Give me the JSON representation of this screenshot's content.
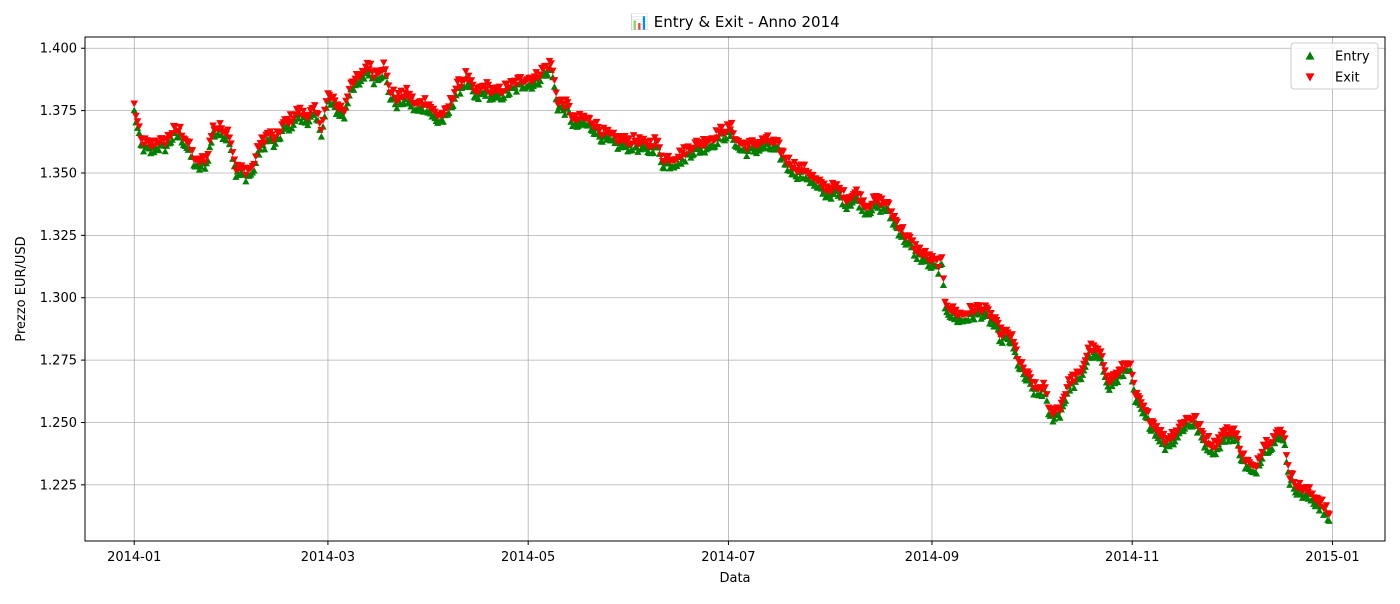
{
  "chart_data": {
    "type": "scatter",
    "title": "📊 Entry & Exit - Anno 2014",
    "xlabel": "Data",
    "ylabel": "Prezzo EUR/USD",
    "x_type": "date",
    "xlim": [
      "2013-12-17",
      "2015-01-17"
    ],
    "ylim": [
      1.2025,
      1.4045
    ],
    "x_ticks": [
      "2014-01",
      "2014-03",
      "2014-05",
      "2014-07",
      "2014-09",
      "2014-11",
      "2015-01"
    ],
    "x_tick_dates": [
      "2014-01-01",
      "2014-03-01",
      "2014-05-01",
      "2014-07-01",
      "2014-09-01",
      "2014-11-01",
      "2015-01-01"
    ],
    "y_ticks": [
      1.225,
      1.25,
      1.275,
      1.3,
      1.325,
      1.35,
      1.375,
      1.4
    ],
    "y_tick_labels": [
      "1.225",
      "1.250",
      "1.275",
      "1.300",
      "1.325",
      "1.350",
      "1.375",
      "1.400"
    ],
    "grid": true,
    "legend_position": "top-right",
    "series": [
      {
        "name": "Entry",
        "marker": "triangle-up",
        "color": "#008000"
      },
      {
        "name": "Exit",
        "marker": "triangle-down",
        "color": "#ff0000"
      }
    ],
    "price_path": [
      [
        "2014-01-01",
        1.376
      ],
      [
        "2014-01-03",
        1.362
      ],
      [
        "2014-01-06",
        1.36
      ],
      [
        "2014-01-08",
        1.362
      ],
      [
        "2014-01-10",
        1.361
      ],
      [
        "2014-01-13",
        1.366
      ],
      [
        "2014-01-15",
        1.366
      ],
      [
        "2014-01-17",
        1.362
      ],
      [
        "2014-01-20",
        1.353
      ],
      [
        "2014-01-23",
        1.355
      ],
      [
        "2014-01-25",
        1.367
      ],
      [
        "2014-01-28",
        1.367
      ],
      [
        "2014-01-30",
        1.365
      ],
      [
        "2014-02-01",
        1.351
      ],
      [
        "2014-02-04",
        1.35
      ],
      [
        "2014-02-06",
        1.351
      ],
      [
        "2014-02-08",
        1.36
      ],
      [
        "2014-02-11",
        1.365
      ],
      [
        "2014-02-13",
        1.362
      ],
      [
        "2014-02-15",
        1.368
      ],
      [
        "2014-02-18",
        1.371
      ],
      [
        "2014-02-20",
        1.374
      ],
      [
        "2014-02-22",
        1.372
      ],
      [
        "2014-02-25",
        1.374
      ],
      [
        "2014-02-27",
        1.368
      ],
      [
        "2014-03-01",
        1.38
      ],
      [
        "2014-03-04",
        1.376
      ],
      [
        "2014-03-06",
        1.374
      ],
      [
        "2014-03-08",
        1.386
      ],
      [
        "2014-03-11",
        1.387
      ],
      [
        "2014-03-13",
        1.393
      ],
      [
        "2014-03-15",
        1.389
      ],
      [
        "2014-03-18",
        1.392
      ],
      [
        "2014-03-20",
        1.382
      ],
      [
        "2014-03-22",
        1.379
      ],
      [
        "2014-03-25",
        1.381
      ],
      [
        "2014-03-28",
        1.376
      ],
      [
        "2014-03-31",
        1.378
      ],
      [
        "2014-04-03",
        1.372
      ],
      [
        "2014-04-06",
        1.373
      ],
      [
        "2014-04-09",
        1.383
      ],
      [
        "2014-04-12",
        1.388
      ],
      [
        "2014-04-15",
        1.381
      ],
      [
        "2014-04-18",
        1.384
      ],
      [
        "2014-04-21",
        1.381
      ],
      [
        "2014-04-24",
        1.383
      ],
      [
        "2014-04-27",
        1.385
      ],
      [
        "2014-04-30",
        1.387
      ],
      [
        "2014-05-03",
        1.387
      ],
      [
        "2014-05-06",
        1.391
      ],
      [
        "2014-05-08",
        1.393
      ],
      [
        "2014-05-10",
        1.378
      ],
      [
        "2014-05-13",
        1.376
      ],
      [
        "2014-05-15",
        1.37
      ],
      [
        "2014-05-18",
        1.371
      ],
      [
        "2014-05-21",
        1.369
      ],
      [
        "2014-05-24",
        1.365
      ],
      [
        "2014-05-27",
        1.363
      ],
      [
        "2014-05-30",
        1.362
      ],
      [
        "2014-06-03",
        1.362
      ],
      [
        "2014-06-06",
        1.36
      ],
      [
        "2014-06-09",
        1.362
      ],
      [
        "2014-06-11",
        1.355
      ],
      [
        "2014-06-14",
        1.355
      ],
      [
        "2014-06-17",
        1.357
      ],
      [
        "2014-06-20",
        1.36
      ],
      [
        "2014-06-23",
        1.361
      ],
      [
        "2014-06-26",
        1.363
      ],
      [
        "2014-06-29",
        1.366
      ],
      [
        "2014-07-02",
        1.367
      ],
      [
        "2014-07-04",
        1.361
      ],
      [
        "2014-07-07",
        1.36
      ],
      [
        "2014-07-10",
        1.361
      ],
      [
        "2014-07-13",
        1.362
      ],
      [
        "2014-07-16",
        1.36
      ],
      [
        "2014-07-19",
        1.354
      ],
      [
        "2014-07-22",
        1.351
      ],
      [
        "2014-07-25",
        1.35
      ],
      [
        "2014-07-28",
        1.345
      ],
      [
        "2014-07-31",
        1.343
      ],
      [
        "2014-08-03",
        1.343
      ],
      [
        "2014-08-06",
        1.339
      ],
      [
        "2014-08-09",
        1.341
      ],
      [
        "2014-08-12",
        1.336
      ],
      [
        "2014-08-15",
        1.338
      ],
      [
        "2014-08-18",
        1.337
      ],
      [
        "2014-08-21",
        1.33
      ],
      [
        "2014-08-24",
        1.324
      ],
      [
        "2014-08-27",
        1.319
      ],
      [
        "2014-08-30",
        1.316
      ],
      [
        "2014-09-02",
        1.313
      ],
      [
        "2014-09-04",
        1.313
      ],
      [
        "2014-09-05",
        1.298
      ],
      [
        "2014-09-07",
        1.294
      ],
      [
        "2014-09-10",
        1.292
      ],
      [
        "2014-09-13",
        1.294
      ],
      [
        "2014-09-16",
        1.295
      ],
      [
        "2014-09-19",
        1.292
      ],
      [
        "2014-09-22",
        1.285
      ],
      [
        "2014-09-25",
        1.284
      ],
      [
        "2014-09-28",
        1.272
      ],
      [
        "2014-10-01",
        1.266
      ],
      [
        "2014-10-03",
        1.262
      ],
      [
        "2014-10-05",
        1.264
      ],
      [
        "2014-10-07",
        1.253
      ],
      [
        "2014-10-10",
        1.255
      ],
      [
        "2014-10-13",
        1.266
      ],
      [
        "2014-10-16",
        1.268
      ],
      [
        "2014-10-19",
        1.279
      ],
      [
        "2014-10-22",
        1.277
      ],
      [
        "2014-10-25",
        1.266
      ],
      [
        "2014-10-28",
        1.269
      ],
      [
        "2014-10-31",
        1.274
      ],
      [
        "2014-11-02",
        1.26
      ],
      [
        "2014-11-05",
        1.253
      ],
      [
        "2014-11-08",
        1.248
      ],
      [
        "2014-11-11",
        1.242
      ],
      [
        "2014-11-14",
        1.245
      ],
      [
        "2014-11-17",
        1.25
      ],
      [
        "2014-11-20",
        1.251
      ],
      [
        "2014-11-23",
        1.243
      ],
      [
        "2014-11-26",
        1.24
      ],
      [
        "2014-11-29",
        1.245
      ],
      [
        "2014-12-02",
        1.246
      ],
      [
        "2014-12-05",
        1.235
      ],
      [
        "2014-12-08",
        1.23
      ],
      [
        "2014-12-11",
        1.24
      ],
      [
        "2014-12-14",
        1.243
      ],
      [
        "2014-12-17",
        1.246
      ],
      [
        "2014-12-19",
        1.228
      ],
      [
        "2014-12-22",
        1.223
      ],
      [
        "2014-12-25",
        1.221
      ],
      [
        "2014-12-28",
        1.218
      ],
      [
        "2014-12-31",
        1.212
      ]
    ]
  }
}
